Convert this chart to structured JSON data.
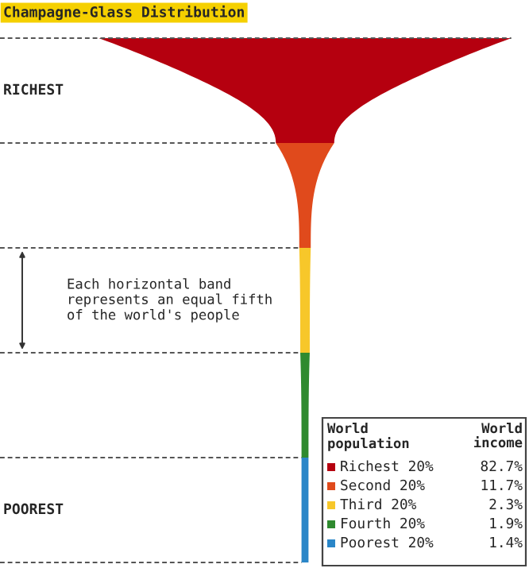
{
  "chart_data": {
    "type": "other",
    "title": "Champagne-Glass Distribution",
    "categories": [
      "Richest 20%",
      "Second 20%",
      "Third 20%",
      "Fourth 20%",
      "Poorest 20%"
    ],
    "values": [
      82.7,
      11.7,
      2.3,
      1.9,
      1.4
    ],
    "value_labels": [
      "82.7%",
      "11.7%",
      "2.3%",
      "1.9%",
      "1.4%"
    ],
    "colors": [
      "#b5000f",
      "#e04a1c",
      "#f7c72a",
      "#2f8a2f",
      "#2a86c8"
    ],
    "legend_title": [
      "World\npopulation",
      "World\nincome"
    ],
    "annotations": [
      "RICHEST",
      "POOREST",
      "Each horizontal band\nrepresents an equal fifth\nof the world's people"
    ]
  }
}
